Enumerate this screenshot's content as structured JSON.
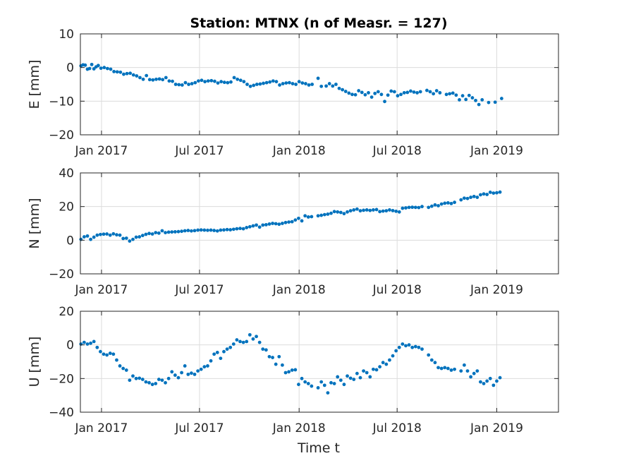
{
  "figure": {
    "title": "Station: MTNX (n of Measr. = 127)",
    "xlabel": "Time t"
  },
  "chart_data": [
    {
      "type": "scatter",
      "ylabel": "E [mm]",
      "ylim": [
        -20,
        10
      ],
      "yticks": [
        -20,
        -10,
        0,
        10
      ],
      "xlim": [
        "2016-11-23",
        "2019-04-25"
      ],
      "xticks": [
        "Jan 2017",
        "Jul 2017",
        "Jan 2018",
        "Jul 2018",
        "Jan 2019"
      ],
      "grid": true,
      "color": "#0072BD",
      "series": [
        {
          "x": [
            "2016-11-24",
            "2016-11-28",
            "2016-12-02",
            "2016-12-06",
            "2016-12-10",
            "2016-12-14",
            "2016-12-18",
            "2016-12-22",
            "2016-12-26",
            "2016-12-31",
            "2017-01-06",
            "2017-01-12",
            "2017-01-18",
            "2017-01-24",
            "2017-01-30",
            "2017-02-05",
            "2017-02-11",
            "2017-02-17",
            "2017-02-23",
            "2017-03-01",
            "2017-03-07",
            "2017-03-13",
            "2017-03-19",
            "2017-03-25",
            "2017-03-31",
            "2017-04-06",
            "2017-04-12",
            "2017-04-18",
            "2017-04-24",
            "2017-04-30",
            "2017-05-06",
            "2017-05-12",
            "2017-05-18",
            "2017-05-24",
            "2017-05-30",
            "2017-06-05",
            "2017-06-11",
            "2017-06-17",
            "2017-06-23",
            "2017-06-29",
            "2017-07-05",
            "2017-07-11",
            "2017-07-17",
            "2017-07-23",
            "2017-07-29",
            "2017-08-04",
            "2017-08-10",
            "2017-08-16",
            "2017-08-22",
            "2017-08-28",
            "2017-09-03",
            "2017-09-09",
            "2017-09-15",
            "2017-09-21",
            "2017-09-27",
            "2017-10-03",
            "2017-10-09",
            "2017-10-15",
            "2017-10-21",
            "2017-10-27",
            "2017-11-02",
            "2017-11-08",
            "2017-11-14",
            "2017-11-20",
            "2017-11-26",
            "2017-12-02",
            "2017-12-08",
            "2017-12-14",
            "2017-12-20",
            "2017-12-26",
            "2018-01-01",
            "2018-01-07",
            "2018-01-13",
            "2018-01-19",
            "2018-01-25",
            "2018-02-05",
            "2018-02-11",
            "2018-02-20",
            "2018-02-26",
            "2018-03-04",
            "2018-03-10",
            "2018-03-16",
            "2018-03-22",
            "2018-03-28",
            "2018-04-03",
            "2018-04-09",
            "2018-04-15",
            "2018-04-21",
            "2018-04-27",
            "2018-05-03",
            "2018-05-09",
            "2018-05-15",
            "2018-05-21",
            "2018-05-27",
            "2018-06-02",
            "2018-06-08",
            "2018-06-14",
            "2018-06-20",
            "2018-06-26",
            "2018-07-02",
            "2018-07-08",
            "2018-07-14",
            "2018-07-20",
            "2018-07-26",
            "2018-08-01",
            "2018-08-07",
            "2018-08-13",
            "2018-08-25",
            "2018-08-31",
            "2018-09-06",
            "2018-09-12",
            "2018-09-18",
            "2018-09-30",
            "2018-10-06",
            "2018-10-12",
            "2018-10-18",
            "2018-10-24",
            "2018-10-30",
            "2018-11-05",
            "2018-11-11",
            "2018-11-17",
            "2018-11-23",
            "2018-11-29",
            "2018-12-05",
            "2018-12-17",
            "2018-12-29",
            "2019-01-10"
          ],
          "y": [
            0.5,
            0.8,
            0.7,
            -0.5,
            -0.3,
            0.9,
            -0.4,
            0.2,
            0.6,
            -0.2,
            0.0,
            -0.3,
            -0.5,
            -1.2,
            -1.3,
            -1.4,
            -2.0,
            -1.8,
            -1.7,
            -2.2,
            -2.5,
            -3.0,
            -3.5,
            -2.4,
            -3.6,
            -3.7,
            -3.5,
            -3.4,
            -3.6,
            -3.0,
            -4.0,
            -4.1,
            -5.0,
            -5.1,
            -5.2,
            -4.5,
            -5.0,
            -4.8,
            -4.5,
            -4.0,
            -3.8,
            -4.2,
            -4.0,
            -3.9,
            -4.1,
            -4.6,
            -4.2,
            -4.4,
            -4.5,
            -4.3,
            -3.0,
            -3.5,
            -3.8,
            -4.2,
            -5.0,
            -5.6,
            -5.3,
            -5.0,
            -4.9,
            -4.7,
            -4.5,
            -4.3,
            -4.0,
            -4.2,
            -5.2,
            -4.8,
            -4.6,
            -4.5,
            -4.8,
            -5.0,
            -4.2,
            -4.6,
            -4.8,
            -5.2,
            -5.0,
            -3.2,
            -5.6,
            -5.5,
            -4.8,
            -5.5,
            -5.0,
            -6.2,
            -6.6,
            -7.1,
            -7.6,
            -8.0,
            -8.1,
            -6.9,
            -7.4,
            -8.1,
            -7.5,
            -8.8,
            -7.7,
            -7.2,
            -8.0,
            -10.1,
            -8.2,
            -7.0,
            -7.2,
            -8.4,
            -8.0,
            -7.5,
            -7.4,
            -7.0,
            -7.3,
            -7.5,
            -7.2,
            -6.8,
            -7.2,
            -7.8,
            -6.9,
            -7.5,
            -8.0,
            -7.8,
            -7.6,
            -8.2,
            -9.6,
            -8.4,
            -9.5,
            -8.3,
            -9.0,
            -9.8,
            -11.0,
            -9.6,
            -10.4,
            -10.3,
            -9.2
          ]
        }
      ]
    },
    {
      "type": "scatter",
      "ylabel": "N [mm]",
      "ylim": [
        -20,
        40
      ],
      "yticks": [
        -20,
        0,
        20,
        40
      ],
      "xlim": [
        "2016-11-23",
        "2019-04-25"
      ],
      "xticks": [
        "Jan 2017",
        "Jul 2017",
        "Jan 2018",
        "Jul 2018",
        "Jan 2019"
      ],
      "grid": true,
      "color": "#0072BD",
      "series": [
        {
          "x": [
            "2016-11-24",
            "2016-11-30",
            "2016-12-06",
            "2016-12-12",
            "2016-12-18",
            "2016-12-24",
            "2016-12-30",
            "2017-01-05",
            "2017-01-11",
            "2017-01-17",
            "2017-01-23",
            "2017-01-29",
            "2017-02-04",
            "2017-02-10",
            "2017-02-16",
            "2017-02-22",
            "2017-02-28",
            "2017-03-06",
            "2017-03-12",
            "2017-03-18",
            "2017-03-24",
            "2017-03-30",
            "2017-04-05",
            "2017-04-11",
            "2017-04-17",
            "2017-04-23",
            "2017-04-29",
            "2017-05-05",
            "2017-05-11",
            "2017-05-17",
            "2017-05-23",
            "2017-05-29",
            "2017-06-04",
            "2017-06-10",
            "2017-06-16",
            "2017-06-22",
            "2017-06-28",
            "2017-07-04",
            "2017-07-10",
            "2017-07-16",
            "2017-07-22",
            "2017-07-28",
            "2017-08-03",
            "2017-08-09",
            "2017-08-15",
            "2017-08-21",
            "2017-08-27",
            "2017-09-02",
            "2017-09-08",
            "2017-09-14",
            "2017-09-20",
            "2017-09-26",
            "2017-10-02",
            "2017-10-08",
            "2017-10-14",
            "2017-10-20",
            "2017-10-26",
            "2017-11-01",
            "2017-11-07",
            "2017-11-13",
            "2017-11-19",
            "2017-11-25",
            "2017-12-01",
            "2017-12-07",
            "2017-12-13",
            "2017-12-19",
            "2017-12-25",
            "2017-12-31",
            "2018-01-06",
            "2018-01-12",
            "2018-01-18",
            "2018-01-24",
            "2018-02-05",
            "2018-02-11",
            "2018-02-17",
            "2018-02-23",
            "2018-03-01",
            "2018-03-07",
            "2018-03-13",
            "2018-03-19",
            "2018-03-25",
            "2018-03-31",
            "2018-04-06",
            "2018-04-12",
            "2018-04-18",
            "2018-04-24",
            "2018-04-30",
            "2018-05-06",
            "2018-05-12",
            "2018-05-18",
            "2018-05-24",
            "2018-05-30",
            "2018-06-05",
            "2018-06-11",
            "2018-06-17",
            "2018-06-23",
            "2018-06-29",
            "2018-07-05",
            "2018-07-11",
            "2018-07-17",
            "2018-07-23",
            "2018-07-29",
            "2018-08-04",
            "2018-08-10",
            "2018-08-16",
            "2018-08-28",
            "2018-09-03",
            "2018-09-09",
            "2018-09-15",
            "2018-09-21",
            "2018-09-27",
            "2018-10-03",
            "2018-10-09",
            "2018-10-15",
            "2018-10-27",
            "2018-11-02",
            "2018-11-08",
            "2018-11-14",
            "2018-11-20",
            "2018-11-26",
            "2018-12-02",
            "2018-12-08",
            "2018-12-14",
            "2018-12-20",
            "2018-12-26",
            "2019-01-01",
            "2019-01-07"
          ],
          "y": [
            0.5,
            2.0,
            2.5,
            0.5,
            1.8,
            3.0,
            3.4,
            3.6,
            3.7,
            3.0,
            3.8,
            3.2,
            3.0,
            1.0,
            1.2,
            -0.5,
            0.5,
            1.8,
            2.0,
            2.8,
            3.5,
            4.0,
            3.7,
            4.5,
            4.2,
            5.6,
            4.5,
            4.8,
            4.9,
            5.0,
            5.1,
            5.3,
            5.6,
            5.8,
            5.5,
            5.7,
            6.0,
            6.1,
            6.0,
            5.9,
            6.0,
            5.8,
            5.5,
            6.0,
            6.1,
            6.3,
            6.2,
            6.5,
            6.8,
            7.0,
            6.8,
            7.5,
            8.0,
            8.5,
            9.0,
            7.8,
            9.0,
            9.2,
            9.6,
            10.0,
            9.8,
            9.5,
            10.0,
            10.5,
            10.8,
            11.0,
            12.0,
            13.0,
            11.5,
            14.5,
            13.8,
            14.0,
            14.5,
            14.8,
            15.2,
            15.5,
            16.0,
            17.0,
            16.8,
            16.5,
            15.8,
            16.8,
            17.5,
            18.0,
            18.5,
            17.5,
            17.8,
            18.0,
            17.7,
            18.0,
            18.2,
            17.0,
            17.3,
            17.5,
            18.0,
            17.6,
            17.2,
            16.8,
            19.0,
            19.2,
            19.5,
            19.6,
            19.5,
            19.4,
            20.0,
            19.5,
            20.2,
            21.0,
            20.5,
            21.5,
            22.0,
            22.2,
            21.8,
            22.5,
            24.0,
            25.0,
            24.8,
            25.5,
            26.0,
            25.5,
            27.0,
            27.5,
            27.2,
            28.5,
            28.0,
            28.2,
            28.6
          ]
        }
      ]
    },
    {
      "type": "scatter",
      "ylabel": "U [mm]",
      "ylim": [
        -40,
        20
      ],
      "yticks": [
        -40,
        -20,
        0,
        20
      ],
      "xlim": [
        "2016-11-23",
        "2019-04-25"
      ],
      "xticks": [
        "Jan 2017",
        "Jul 2017",
        "Jan 2018",
        "Jul 2018",
        "Jan 2019"
      ],
      "grid": true,
      "color": "#0072BD",
      "series": [
        {
          "x": [
            "2016-11-24",
            "2016-11-30",
            "2016-12-06",
            "2016-12-12",
            "2016-12-18",
            "2016-12-24",
            "2016-12-30",
            "2017-01-05",
            "2017-01-11",
            "2017-01-17",
            "2017-01-23",
            "2017-01-29",
            "2017-02-04",
            "2017-02-10",
            "2017-02-16",
            "2017-02-22",
            "2017-02-28",
            "2017-03-06",
            "2017-03-12",
            "2017-03-18",
            "2017-03-24",
            "2017-03-30",
            "2017-04-05",
            "2017-04-11",
            "2017-04-17",
            "2017-04-23",
            "2017-04-29",
            "2017-05-05",
            "2017-05-11",
            "2017-05-17",
            "2017-05-23",
            "2017-05-29",
            "2017-06-04",
            "2017-06-10",
            "2017-06-16",
            "2017-06-22",
            "2017-06-28",
            "2017-07-04",
            "2017-07-10",
            "2017-07-16",
            "2017-07-22",
            "2017-07-28",
            "2017-08-03",
            "2017-08-09",
            "2017-08-15",
            "2017-08-21",
            "2017-08-27",
            "2017-09-02",
            "2017-09-08",
            "2017-09-14",
            "2017-09-20",
            "2017-09-26",
            "2017-10-02",
            "2017-10-08",
            "2017-10-14",
            "2017-10-20",
            "2017-10-26",
            "2017-11-01",
            "2017-11-07",
            "2017-11-13",
            "2017-11-19",
            "2017-11-25",
            "2017-12-01",
            "2017-12-07",
            "2017-12-13",
            "2017-12-19",
            "2017-12-25",
            "2017-12-31",
            "2018-01-06",
            "2018-01-12",
            "2018-01-18",
            "2018-01-24",
            "2018-02-05",
            "2018-02-11",
            "2018-02-17",
            "2018-02-23",
            "2018-03-01",
            "2018-03-07",
            "2018-03-13",
            "2018-03-19",
            "2018-03-25",
            "2018-03-31",
            "2018-04-06",
            "2018-04-12",
            "2018-04-18",
            "2018-04-24",
            "2018-04-30",
            "2018-05-06",
            "2018-05-12",
            "2018-05-18",
            "2018-05-24",
            "2018-05-30",
            "2018-06-05",
            "2018-06-11",
            "2018-06-17",
            "2018-06-23",
            "2018-06-29",
            "2018-07-05",
            "2018-07-11",
            "2018-07-17",
            "2018-07-23",
            "2018-07-29",
            "2018-08-04",
            "2018-08-10",
            "2018-08-16",
            "2018-08-28",
            "2018-09-03",
            "2018-09-09",
            "2018-09-15",
            "2018-09-21",
            "2018-09-27",
            "2018-10-03",
            "2018-10-09",
            "2018-10-15",
            "2018-10-27",
            "2018-11-02",
            "2018-11-08",
            "2018-11-14",
            "2018-11-20",
            "2018-11-26",
            "2018-12-02",
            "2018-12-08",
            "2018-12-14",
            "2018-12-20",
            "2018-12-26",
            "2019-01-01",
            "2019-01-07"
          ],
          "y": [
            0.5,
            1.5,
            0.5,
            1.0,
            2.0,
            -1.5,
            -4.0,
            -5.5,
            -6.0,
            -5.0,
            -5.5,
            -9.0,
            -12.5,
            -14.0,
            -15.0,
            -21.0,
            -18.5,
            -20.0,
            -19.8,
            -20.5,
            -22.0,
            -22.5,
            -23.5,
            -23.0,
            -20.5,
            -21.0,
            -22.5,
            -20.0,
            -16.0,
            -18.0,
            -19.5,
            -16.5,
            -12.5,
            -17.5,
            -16.8,
            -17.5,
            -15.5,
            -14.5,
            -13.0,
            -12.5,
            -9.5,
            -5.5,
            -4.5,
            -8.0,
            -4.0,
            -2.5,
            -1.5,
            0.5,
            3.0,
            2.0,
            1.5,
            2.0,
            6.0,
            3.5,
            5.0,
            1.5,
            -2.5,
            -3.0,
            -7.0,
            -7.5,
            -11.5,
            -7.0,
            -12.0,
            -16.5,
            -16.0,
            -15.0,
            -14.8,
            -23.5,
            -20.0,
            -22.0,
            -23.0,
            -24.5,
            -25.5,
            -22.0,
            -24.0,
            -28.5,
            -22.5,
            -23.0,
            -19.0,
            -21.0,
            -23.5,
            -18.5,
            -19.8,
            -20.5,
            -17.0,
            -19.5,
            -15.5,
            -16.5,
            -19.0,
            -14.5,
            -14.8,
            -13.0,
            -10.5,
            -11.5,
            -9.0,
            -6.5,
            -3.5,
            -1.5,
            0.5,
            -0.5,
            0.0,
            -1.5,
            -1.0,
            -1.5,
            -2.5,
            -6.0,
            -9.0,
            -10.5,
            -13.5,
            -14.0,
            -13.5,
            -14.0,
            -15.0,
            -14.5,
            -15.5,
            -12.0,
            -15.5,
            -19.0,
            -17.0,
            -15.5,
            -22.0,
            -23.0,
            -21.5,
            -20.0,
            -24.0,
            -21.5,
            -19.5
          ]
        }
      ]
    }
  ]
}
